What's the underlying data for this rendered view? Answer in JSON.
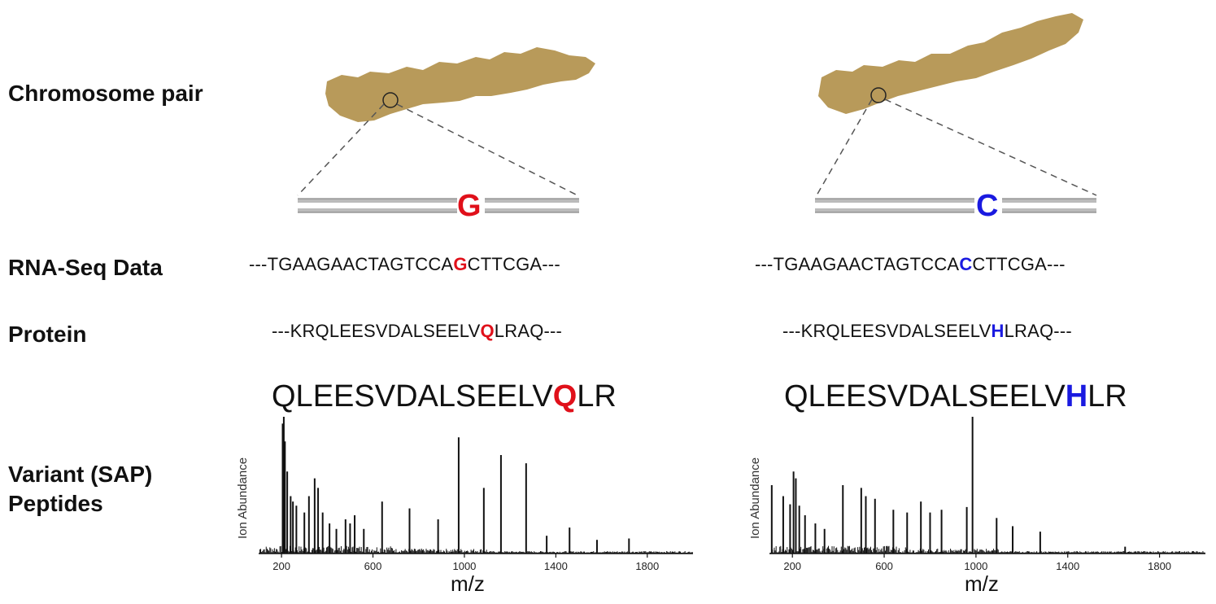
{
  "labels": {
    "chromosome": "Chromosome pair",
    "rnaseq": "RNA-Seq Data",
    "protein": "Protein",
    "variant_line1": "Variant (SAP)",
    "variant_line2": "Peptides"
  },
  "colors": {
    "chromosome": "#b89a5a",
    "allele_left": "#e0101a",
    "allele_right": "#1a1ae0"
  },
  "left": {
    "allele": "G",
    "rna": {
      "pre": "---TGAAGAACTAGTCCA",
      "var": "G",
      "post": "CTTCGA---"
    },
    "protein": {
      "pre": "---KRQLEESVDALSEELV",
      "var": "Q",
      "post": "LRAQ---"
    },
    "peptide": {
      "pre": "QLEESVDALSEELV",
      "var": "Q",
      "post": "LR"
    }
  },
  "right": {
    "allele": "C",
    "rna": {
      "pre": "---TGAAGAACTAGTCCA",
      "var": "C",
      "post": "CTTCGA---"
    },
    "protein": {
      "pre": "---KRQLEESVDALSEELV",
      "var": "H",
      "post": "LRAQ---"
    },
    "peptide": {
      "pre": "QLEESVDALSEELV",
      "var": "H",
      "post": "LR"
    }
  },
  "chart_data": [
    {
      "type": "bar",
      "title": "",
      "xlabel": "m/z",
      "ylabel": "Ion Abundance",
      "xlim": [
        100,
        2000
      ],
      "xticks": [
        "200",
        "600",
        "1000",
        "1400",
        "1800"
      ],
      "peaks_mz": [
        205,
        210,
        215,
        225,
        240,
        250,
        265,
        300,
        320,
        345,
        360,
        380,
        410,
        440,
        480,
        500,
        520,
        560,
        640,
        760,
        885,
        975,
        1085,
        1160,
        1270,
        1360,
        1460,
        1580,
        1720
      ],
      "peaks_abundance": [
        0.95,
        1.0,
        0.82,
        0.6,
        0.42,
        0.38,
        0.35,
        0.3,
        0.42,
        0.55,
        0.48,
        0.3,
        0.22,
        0.18,
        0.25,
        0.22,
        0.28,
        0.18,
        0.38,
        0.33,
        0.25,
        0.85,
        0.48,
        0.72,
        0.66,
        0.13,
        0.19,
        0.1,
        0.11
      ]
    },
    {
      "type": "bar",
      "title": "",
      "xlabel": "m/z",
      "ylabel": "Ion Abundance",
      "xlim": [
        100,
        2000
      ],
      "xticks": [
        "200",
        "600",
        "1000",
        "1400",
        "1800"
      ],
      "peaks_mz": [
        110,
        160,
        190,
        205,
        215,
        230,
        255,
        300,
        340,
        420,
        500,
        520,
        560,
        640,
        700,
        760,
        800,
        850,
        960,
        985,
        1090,
        1160,
        1280,
        1650
      ],
      "peaks_abundance": [
        0.5,
        0.42,
        0.36,
        0.6,
        0.55,
        0.35,
        0.28,
        0.22,
        0.18,
        0.5,
        0.48,
        0.42,
        0.4,
        0.32,
        0.3,
        0.38,
        0.3,
        0.32,
        0.34,
        1.0,
        0.26,
        0.2,
        0.16,
        0.05
      ]
    }
  ]
}
